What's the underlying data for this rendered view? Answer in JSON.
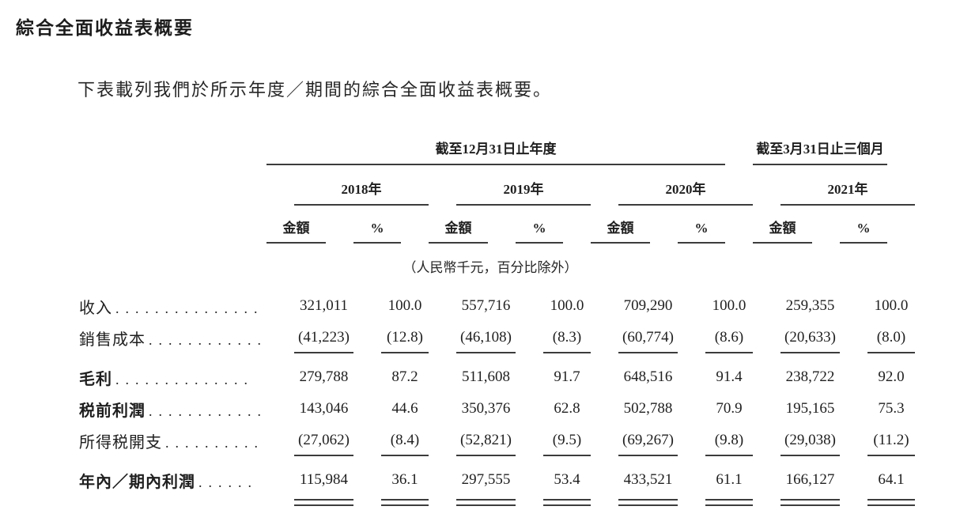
{
  "page": {
    "title": "綜合全面收益表概要",
    "intro": "下表載列我們於所示年度／期間的綜合全面收益表概要。"
  },
  "table": {
    "group_headers": [
      {
        "label": "截至12月31日止年度",
        "years": [
          "2018年",
          "2019年",
          "2020年"
        ]
      },
      {
        "label": "截至3月31日止三個月",
        "years": [
          "2021年"
        ]
      }
    ],
    "year_headers": [
      "2018年",
      "2019年",
      "2020年",
      "2021年"
    ],
    "sub_headers": {
      "amount": "金額",
      "percent": "%"
    },
    "unit_note": "（人民幣千元，百分比除外）",
    "rows": [
      {
        "label": "收入",
        "leader": "...............",
        "bold": false,
        "rule_below": false,
        "double_rule": false,
        "values": [
          "321,011",
          "100.0",
          "557,716",
          "100.0",
          "709,290",
          "100.0",
          "259,355",
          "100.0"
        ]
      },
      {
        "label": "銷售成本",
        "leader": ".............",
        "bold": false,
        "rule_below": true,
        "double_rule": false,
        "values": [
          "(41,223)",
          "(12.8)",
          "(46,108)",
          "(8.3)",
          "(60,774)",
          "(8.6)",
          "(20,633)",
          "(8.0)"
        ]
      },
      {
        "label": "毛利",
        "leader": "..............",
        "bold": true,
        "rule_below": false,
        "double_rule": false,
        "values": [
          "279,788",
          "87.2",
          "511,608",
          "91.7",
          "648,516",
          "91.4",
          "238,722",
          "92.0"
        ]
      },
      {
        "label": "税前利潤",
        "leader": "............",
        "bold": true,
        "rule_below": false,
        "double_rule": false,
        "values": [
          "143,046",
          "44.6",
          "350,376",
          "62.8",
          "502,788",
          "70.9",
          "195,165",
          "75.3"
        ]
      },
      {
        "label": "所得税開支",
        "leader": "..........",
        "bold": false,
        "rule_below": true,
        "double_rule": false,
        "values": [
          "(27,062)",
          "(8.4)",
          "(52,821)",
          "(9.5)",
          "(69,267)",
          "(9.8)",
          "(29,038)",
          "(11.2)"
        ]
      },
      {
        "label": "年內／期內利潤",
        "leader": "......",
        "bold": true,
        "rule_below": false,
        "double_rule": true,
        "values": [
          "115,984",
          "36.1",
          "297,555",
          "53.4",
          "433,521",
          "61.1",
          "166,127",
          "64.1"
        ]
      }
    ]
  }
}
